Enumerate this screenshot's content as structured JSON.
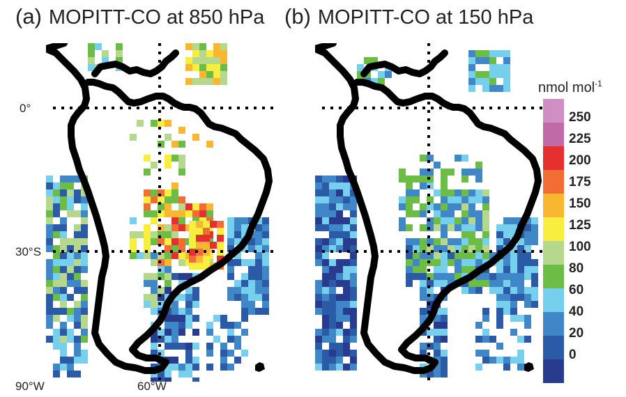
{
  "panels": [
    {
      "letter": "(a)",
      "title": "MOPITT-CO at 850 hPa",
      "seed": 7,
      "bias": 1
    },
    {
      "letter": "(b)",
      "title": "MOPITT-CO at 150 hPa",
      "seed": 13,
      "bias": 0
    }
  ],
  "labels": {
    "lat_equator": "0°",
    "lat_30s": "30°S",
    "lon_90w": "90°W",
    "lon_60w": "60°W"
  },
  "colorbar": {
    "unit": "nmol mol",
    "unit_sup": "-1",
    "ticks": [
      "250",
      "225",
      "200",
      "175",
      "150",
      "125",
      "100",
      "80",
      "60",
      "40",
      "20",
      "0"
    ],
    "colors": [
      "#cf8fc4",
      "#c06aa9",
      "#e63030",
      "#f26d33",
      "#f9b731",
      "#f7ee3f",
      "#b6d88d",
      "#6bbd46",
      "#77cfee",
      "#3f87c7",
      "#2b5aa6",
      "#283b8f"
    ]
  }
}
